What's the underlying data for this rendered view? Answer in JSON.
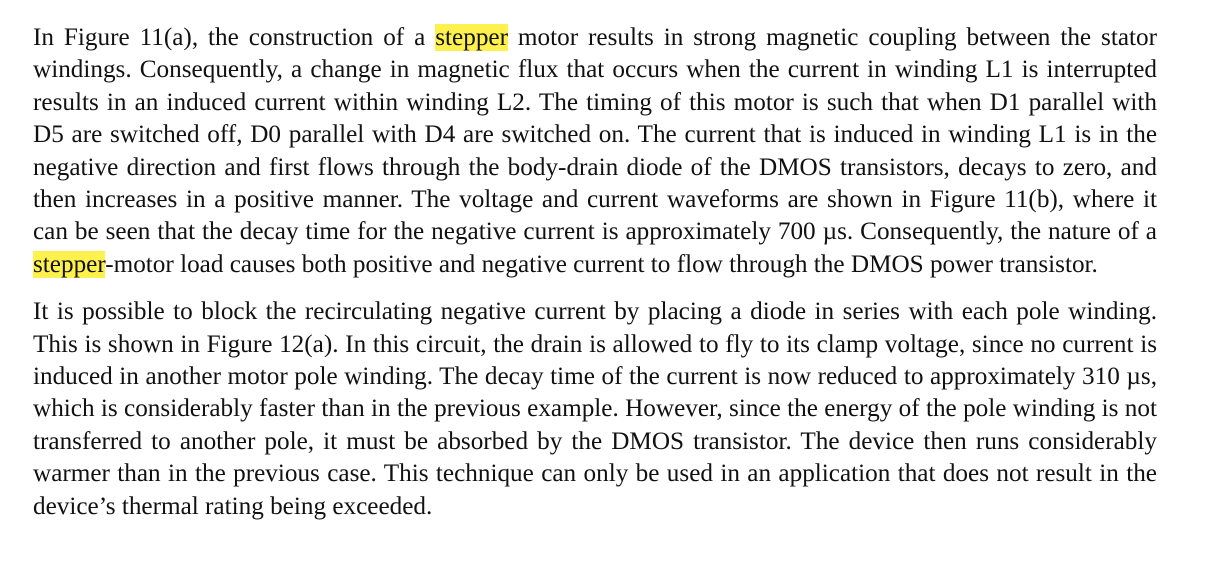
{
  "document": {
    "highlight_color": "#fff14d",
    "paragraphs": [
      {
        "segments": [
          {
            "text": "In Figure 11(a), the construction of a ",
            "highlight": false
          },
          {
            "text": "stepper",
            "highlight": true
          },
          {
            "text": " motor results in strong magnetic coupling between the stator windings. Consequently, a change in magnetic flux that occurs when the current in winding L1 is interrupted results in an induced current within winding L2. The timing of this motor is such that when D1 parallel with D5 are switched off, D0 parallel with D4 are switched on. The current that is induced in winding L1 is in the negative direction and first flows through the body-drain diode of the DMOS transistors, decays to zero, and then increases in a positive manner. The voltage and current waveforms are shown in Figure 11(b), where it can be seen that the decay time for the negative current is approximately 700 µs. Consequently, the nature of a ",
            "highlight": false
          },
          {
            "text": "stepper",
            "highlight": true
          },
          {
            "text": "-motor load causes both positive and negative current to flow through the DMOS power transistor.",
            "highlight": false
          }
        ]
      },
      {
        "segments": [
          {
            "text": "It is possible to block the recirculating negative current by placing a diode in series with each pole winding. This is shown in Figure 12(a). In this circuit, the drain is allowed to fly to its clamp voltage, since no current is induced in another motor pole winding. The decay time of the current is now reduced to approximately 310 µs, which is considerably faster than in the previous example. However, since the energy of the pole winding is not transferred to another pole, it must be absorbed by the DMOS transistor. The device then runs considerably warmer than in the previous case. This technique can only be used in an application that does not result in the device’s thermal rating being exceeded.",
            "highlight": false
          }
        ]
      }
    ]
  }
}
